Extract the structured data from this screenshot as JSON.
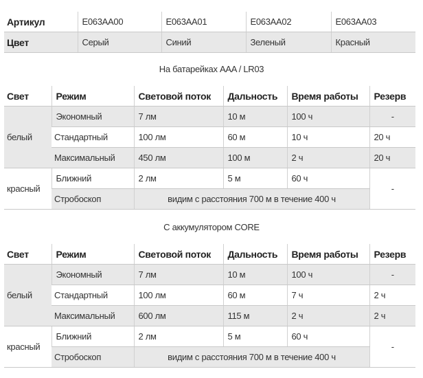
{
  "spec": {
    "rows": [
      {
        "label": "Артикул",
        "values": [
          "E063AA00",
          "E063AA01",
          "E063AA02",
          "E063AA03"
        ]
      },
      {
        "label": "Цвет",
        "values": [
          "Серый",
          "Синий",
          "Зеленый",
          "Красный"
        ]
      }
    ]
  },
  "headers": [
    "Свет",
    "Режим",
    "Световой поток",
    "Дальность",
    "Время работы",
    "Резерв"
  ],
  "battery": {
    "caption": "На батарейках AAA / LR03",
    "white_label": "белый",
    "red_label": "красный",
    "white_rows": [
      {
        "mode": "Экономный",
        "flux": "7 лм",
        "range": "10 м",
        "time": "100 ч",
        "reserve": "-"
      },
      {
        "mode": "Стандартный",
        "flux": "100 лм",
        "range": "60 м",
        "time": "10 ч",
        "reserve": "20 ч"
      },
      {
        "mode": "Максимальный",
        "flux": "450 лм",
        "range": "100 м",
        "time": "2 ч",
        "reserve": "20 ч"
      }
    ],
    "red_near": {
      "mode": "Ближний",
      "flux": "2 лм",
      "range": "5 м",
      "time": "60 ч"
    },
    "red_reserve": "-",
    "strobe": {
      "mode": "Стробоскоп",
      "text": "видим с расстояния 700 м в течение 400 ч"
    }
  },
  "accu": {
    "caption": "С аккумулятором CORE",
    "white_label": "белый",
    "red_label": "красный",
    "white_rows": [
      {
        "mode": "Экономный",
        "flux": "7 лм",
        "range": "10 м",
        "time": "100 ч",
        "reserve": "-"
      },
      {
        "mode": "Стандартный",
        "flux": "100 лм",
        "range": "60 м",
        "time": "7 ч",
        "reserve": "2 ч"
      },
      {
        "mode": "Максимальный",
        "flux": "600 лм",
        "range": "115 м",
        "time": "2 ч",
        "reserve": "2 ч"
      }
    ],
    "red_near": {
      "mode": "Ближний",
      "flux": "2 лм",
      "range": "5 м",
      "time": "60 ч"
    },
    "red_reserve": "-",
    "strobe": {
      "mode": "Стробоскоп",
      "text": "видим с расстояния 700 м в течение 400 ч"
    }
  }
}
